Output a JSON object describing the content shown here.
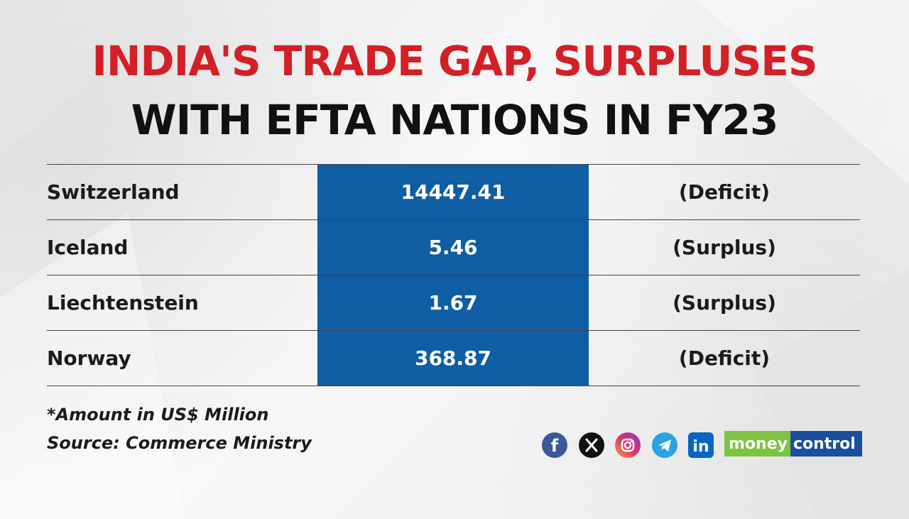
{
  "title_line1": "INDIA'S TRADE GAP, SURPLUSES",
  "title_line2": "WITH EFTA NATIONS IN FY23",
  "chart_data": {
    "type": "table",
    "rows": [
      {
        "country": "Switzerland",
        "value": "14447.41",
        "status": "(Deficit)"
      },
      {
        "country": "Iceland",
        "value": "5.46",
        "status": "(Surplus)"
      },
      {
        "country": "Liechtenstein",
        "value": "1.67",
        "status": "(Surplus)"
      },
      {
        "country": "Norway",
        "value": "368.87",
        "status": "(Deficit)"
      }
    ]
  },
  "footnote": "*Amount in US$ Million",
  "source": "Source: Commerce Ministry",
  "social_icons": [
    "facebook-icon",
    "x-icon",
    "instagram-icon",
    "telegram-icon",
    "linkedin-icon"
  ],
  "logo": {
    "part1": "money",
    "part2": "control"
  },
  "colors": {
    "title_red": "#d32027",
    "value_blue": "#0f5da2",
    "logo_green": "#7dc242",
    "logo_blue": "#1b4f9c"
  }
}
